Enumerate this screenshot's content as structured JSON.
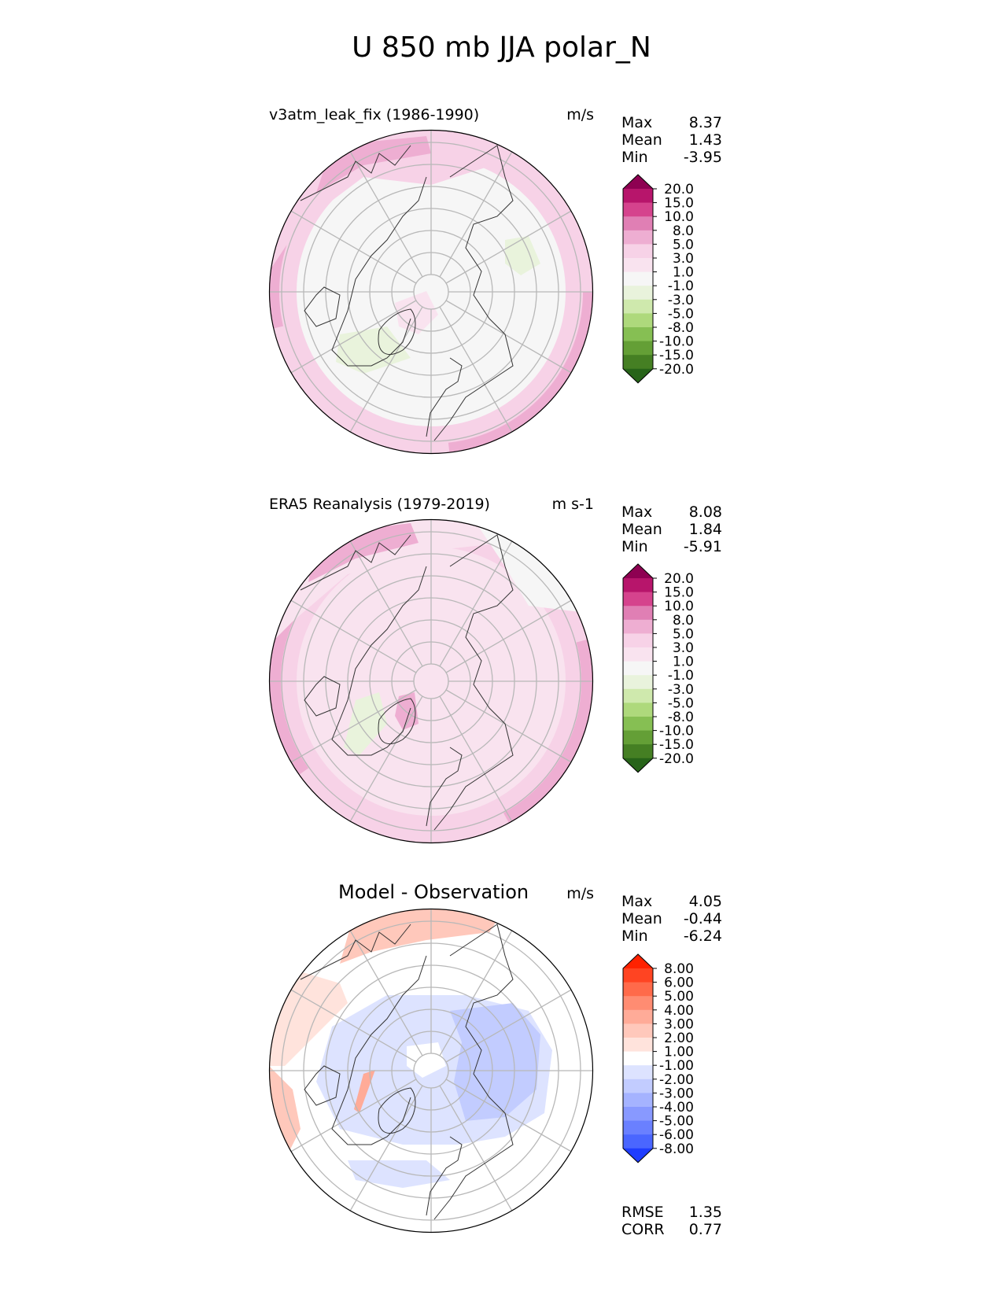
{
  "title": "U 850 mb JJA polar_N",
  "panels": [
    {
      "id": "model",
      "title": "v3atm_leak_fix (1986-1990)",
      "units": "m/s",
      "stats": [
        {
          "label": "Max",
          "value": "8.37"
        },
        {
          "label": "Mean",
          "value": "1.43"
        },
        {
          "label": "Min",
          "value": "-3.95"
        }
      ],
      "colorbar": {
        "labels": [
          "20.0",
          "15.0",
          "10.0",
          "8.0",
          "5.0",
          "3.0",
          "1.0",
          "-1.0",
          "-3.0",
          "-5.0",
          "-8.0",
          "-10.0",
          "-15.0",
          "-20.0"
        ],
        "colors": [
          "#8e0152",
          "#b7156b",
          "#d5438d",
          "#e07fb4",
          "#eeaed2",
          "#f7d2e7",
          "#f9e3ef",
          "#f6f6f6",
          "#e9f3dc",
          "#cfe9ad",
          "#aed97c",
          "#86bf53",
          "#649f36",
          "#457f23",
          "#276419"
        ]
      },
      "stats_extra": []
    },
    {
      "id": "obs",
      "title": "ERA5 Reanalysis (1979-2019)",
      "units": "m s-1",
      "stats": [
        {
          "label": "Max",
          "value": "8.08"
        },
        {
          "label": "Mean",
          "value": "1.84"
        },
        {
          "label": "Min",
          "value": "-5.91"
        }
      ],
      "colorbar": {
        "labels": [
          "20.0",
          "15.0",
          "10.0",
          "8.0",
          "5.0",
          "3.0",
          "1.0",
          "-1.0",
          "-3.0",
          "-5.0",
          "-8.0",
          "-10.0",
          "-15.0",
          "-20.0"
        ],
        "colors": [
          "#8e0152",
          "#b7156b",
          "#d5438d",
          "#e07fb4",
          "#eeaed2",
          "#f7d2e7",
          "#f9e3ef",
          "#f6f6f6",
          "#e9f3dc",
          "#cfe9ad",
          "#aed97c",
          "#86bf53",
          "#649f36",
          "#457f23",
          "#276419"
        ]
      },
      "stats_extra": []
    },
    {
      "id": "diff",
      "title": "Model - Observation",
      "units": "m/s",
      "stats": [
        {
          "label": "Max",
          "value": "4.05"
        },
        {
          "label": "Mean",
          "value": "-0.44"
        },
        {
          "label": "Min",
          "value": "-6.24"
        }
      ],
      "colorbar": {
        "labels": [
          "8.00",
          "6.00",
          "5.00",
          "4.00",
          "3.00",
          "2.00",
          "1.00",
          "-1.00",
          "-2.00",
          "-3.00",
          "-4.00",
          "-5.00",
          "-6.00",
          "-8.00"
        ],
        "colors": [
          "#ff2200",
          "#ff4422",
          "#ff6a4a",
          "#ff8c72",
          "#ffab98",
          "#ffc8bb",
          "#ffe3dc",
          "#ffffff",
          "#dde3ff",
          "#c2ccff",
          "#a5b3ff",
          "#8899ff",
          "#6a80ff",
          "#4a66ff",
          "#1f3dff"
        ]
      },
      "stats_extra": [
        {
          "label": "RMSE",
          "value": "1.35"
        },
        {
          "label": "CORR",
          "value": "0.77"
        }
      ]
    }
  ],
  "chart_data": [
    {
      "type": "heatmap",
      "title": "v3atm_leak_fix (1986-1990)",
      "projection": "polar_N",
      "units": "m/s",
      "stats": {
        "max": 8.37,
        "mean": 1.43,
        "min": -3.95
      },
      "levels": [
        -20,
        -15,
        -10,
        -8,
        -5,
        -3,
        -1,
        1,
        3,
        5,
        8,
        10,
        15,
        20
      ]
    },
    {
      "type": "heatmap",
      "title": "ERA5 Reanalysis (1979-2019)",
      "projection": "polar_N",
      "units": "m s-1",
      "stats": {
        "max": 8.08,
        "mean": 1.84,
        "min": -5.91
      },
      "levels": [
        -20,
        -15,
        -10,
        -8,
        -5,
        -3,
        -1,
        1,
        3,
        5,
        8,
        10,
        15,
        20
      ]
    },
    {
      "type": "heatmap",
      "title": "Model - Observation",
      "projection": "polar_N",
      "units": "m/s",
      "stats": {
        "max": 4.05,
        "mean": -0.44,
        "min": -6.24,
        "rmse": 1.35,
        "corr": 0.77
      },
      "levels": [
        -8,
        -6,
        -5,
        -4,
        -3,
        -2,
        -1,
        1,
        2,
        3,
        4,
        5,
        6,
        8
      ]
    }
  ]
}
